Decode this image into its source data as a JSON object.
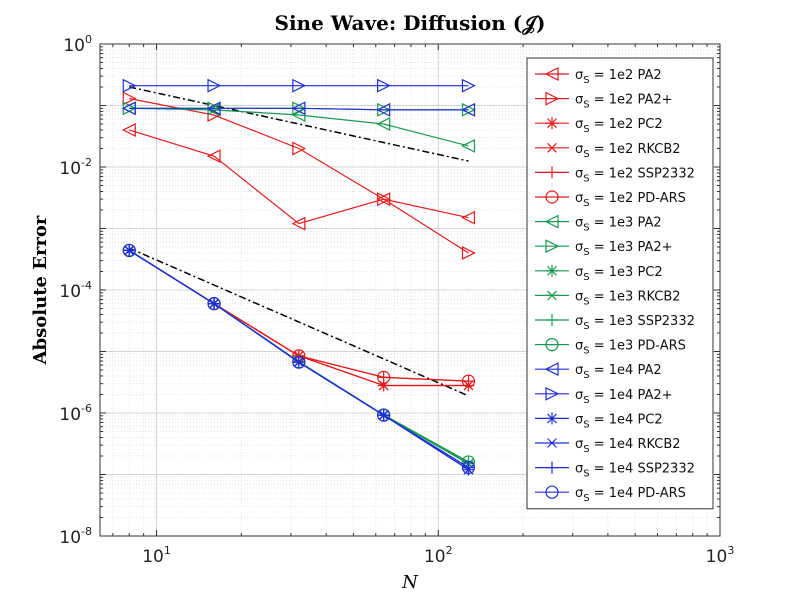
{
  "chart_data": {
    "type": "line",
    "title": "Sine Wave: Diffusion (𝒥)",
    "xlabel": "N",
    "ylabel": "Absolute Error",
    "xscale": "log",
    "yscale": "log",
    "xlim": [
      6.3,
      1000
    ],
    "ylim": [
      1e-08,
      1
    ],
    "grid": true,
    "legend_position": "top-right",
    "x_ticks": [
      {
        "value": 10,
        "base": "10",
        "exp": "1"
      },
      {
        "value": 100,
        "base": "10",
        "exp": "2"
      },
      {
        "value": 1000,
        "base": "10",
        "exp": "3"
      }
    ],
    "y_ticks": [
      {
        "value": 1,
        "base": "10",
        "exp": "0"
      },
      {
        "value": 0.01,
        "base": "10",
        "exp": "-2"
      },
      {
        "value": 0.0001,
        "base": "10",
        "exp": "-4"
      },
      {
        "value": 1e-06,
        "base": "10",
        "exp": "-6"
      },
      {
        "value": 1e-08,
        "base": "10",
        "exp": "-8"
      }
    ],
    "x": [
      8,
      16,
      32,
      64,
      128
    ],
    "colors": {
      "1e2": "#e41a1c",
      "1e3": "#1a9850",
      "1e4": "#1f2fd6",
      "ref": "#000000"
    },
    "legend_sigma": "σ",
    "legend_sub": "S",
    "series": [
      {
        "name": "σS = 1e2  PA2",
        "sigma": "1e2",
        "method": "PA2",
        "marker": "tri-left",
        "values": [
          0.04,
          0.015,
          0.0012,
          0.003,
          0.0015
        ]
      },
      {
        "name": "σS = 1e2  PA2+",
        "sigma": "1e2",
        "method": "PA2+",
        "marker": "tri-right",
        "values": [
          0.13,
          0.07,
          0.02,
          0.003,
          0.0004
        ]
      },
      {
        "name": "σS = 1e2  PC2",
        "sigma": "1e2",
        "method": "PC2",
        "marker": "asterisk",
        "values": [
          0.00044,
          6e-05,
          8.5e-06,
          2.8e-06,
          2.8e-06
        ]
      },
      {
        "name": "σS = 1e2  RKCB2",
        "sigma": "1e2",
        "method": "RKCB2",
        "marker": "x",
        "values": [
          0.00044,
          6e-05,
          8.5e-06,
          2.8e-06,
          2.8e-06
        ]
      },
      {
        "name": "σS = 1e2  SSP2332",
        "sigma": "1e2",
        "method": "SSP2332",
        "marker": "plus",
        "values": [
          0.00044,
          6e-05,
          8.5e-06,
          3.8e-06,
          3.3e-06
        ]
      },
      {
        "name": "σS = 1e2  PD-ARS",
        "sigma": "1e2",
        "method": "PD-ARS",
        "marker": "circle",
        "values": [
          0.00044,
          6e-05,
          8.5e-06,
          3.8e-06,
          3.3e-06
        ]
      },
      {
        "name": "σS = 1e3  PA2",
        "sigma": "1e3",
        "method": "PA2",
        "marker": "tri-left",
        "values": [
          0.09,
          0.085,
          0.07,
          0.05,
          0.022
        ]
      },
      {
        "name": "σS = 1e3  PA2+",
        "sigma": "1e3",
        "method": "PA2+",
        "marker": "tri-right",
        "values": [
          0.09,
          0.09,
          0.09,
          0.085,
          0.085
        ]
      },
      {
        "name": "σS = 1e3  PC2",
        "sigma": "1e3",
        "method": "PC2",
        "marker": "asterisk",
        "values": [
          0.00044,
          6e-05,
          6.8e-06,
          9.3e-07,
          1.5e-07
        ]
      },
      {
        "name": "σS = 1e3  RKCB2",
        "sigma": "1e3",
        "method": "RKCB2",
        "marker": "x",
        "values": [
          0.00044,
          6e-05,
          6.8e-06,
          9.3e-07,
          1.5e-07
        ]
      },
      {
        "name": "σS = 1e3  SSP2332",
        "sigma": "1e3",
        "method": "SSP2332",
        "marker": "plus",
        "values": [
          0.00044,
          6e-05,
          6.8e-06,
          9.3e-07,
          1.6e-07
        ]
      },
      {
        "name": "σS = 1e3  PD-ARS",
        "sigma": "1e3",
        "method": "PD-ARS",
        "marker": "circle",
        "values": [
          0.00044,
          6e-05,
          6.8e-06,
          9.3e-07,
          1.6e-07
        ]
      },
      {
        "name": "σS = 1e4  PA2",
        "sigma": "1e4",
        "method": "PA2",
        "marker": "tri-left",
        "values": [
          0.09,
          0.09,
          0.09,
          0.085,
          0.085
        ]
      },
      {
        "name": "σS = 1e4  PA2+",
        "sigma": "1e4",
        "method": "PA2+",
        "marker": "tri-right",
        "values": [
          0.21,
          0.21,
          0.21,
          0.21,
          0.21
        ]
      },
      {
        "name": "σS = 1e4  PC2",
        "sigma": "1e4",
        "method": "PC2",
        "marker": "asterisk",
        "values": [
          0.00044,
          6e-05,
          6.7e-06,
          9.2e-07,
          1.2e-07
        ]
      },
      {
        "name": "σS = 1e4  RKCB2",
        "sigma": "1e4",
        "method": "RKCB2",
        "marker": "x",
        "values": [
          0.00044,
          6e-05,
          6.7e-06,
          9.2e-07,
          1.2e-07
        ]
      },
      {
        "name": "σS = 1e4  SSP2332",
        "sigma": "1e4",
        "method": "SSP2332",
        "marker": "plus",
        "values": [
          0.00044,
          6e-05,
          6.7e-06,
          9.2e-07,
          1.3e-07
        ]
      },
      {
        "name": "σS = 1e4  PD-ARS",
        "sigma": "1e4",
        "method": "PD-ARS",
        "marker": "circle",
        "values": [
          0.00044,
          6e-05,
          6.7e-06,
          9.2e-07,
          1.3e-07
        ]
      }
    ],
    "reference_lines": [
      {
        "name": "ref-first-order",
        "x": [
          8,
          128
        ],
        "values": [
          0.2,
          0.0125
        ]
      },
      {
        "name": "ref-second-order",
        "x": [
          8,
          128
        ],
        "values": [
          0.00048,
          1.9e-06
        ]
      }
    ]
  }
}
